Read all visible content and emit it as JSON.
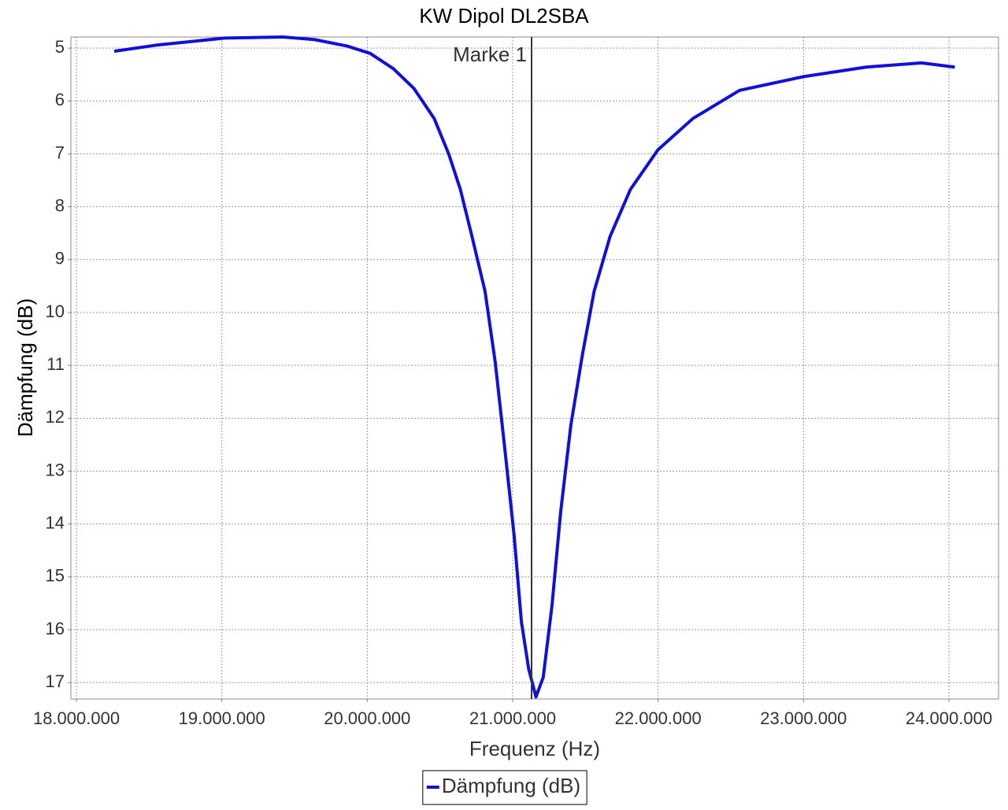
{
  "chart_data": {
    "type": "line",
    "title": "KW Dipol DL2SBA",
    "xlabel": "Frequenz (Hz)",
    "ylabel": "Dämpfung (dB)",
    "x": [
      18260000,
      18560000,
      19020000,
      19420000,
      19640000,
      19860000,
      20020000,
      20180000,
      20320000,
      20460000,
      20560000,
      20640000,
      20720000,
      20810000,
      20880000,
      20940000,
      21010000,
      21060000,
      21110000,
      21160000,
      21210000,
      21270000,
      21330000,
      21400000,
      21480000,
      21560000,
      21670000,
      21810000,
      22000000,
      22240000,
      22560000,
      23000000,
      23430000,
      23810000,
      24040000
    ],
    "series": [
      {
        "name": "Dämpfung (dB)",
        "color": "#1010d8",
        "values": [
          5.06,
          4.94,
          4.81,
          4.79,
          4.84,
          4.96,
          5.1,
          5.39,
          5.76,
          6.33,
          7.0,
          7.67,
          8.56,
          9.6,
          10.94,
          12.43,
          14.22,
          15.85,
          16.74,
          17.27,
          16.9,
          15.55,
          13.77,
          12.13,
          10.79,
          9.6,
          8.56,
          7.67,
          6.92,
          6.33,
          5.8,
          5.54,
          5.36,
          5.28,
          5.36
        ]
      }
    ],
    "xlim": [
      17962000,
      24341000
    ],
    "xticks": [
      {
        "value": 18000000,
        "label": "18.000.000"
      },
      {
        "value": 19000000,
        "label": "19.000.000"
      },
      {
        "value": 20000000,
        "label": "20.000.000"
      },
      {
        "value": 21000000,
        "label": "21.000.000"
      },
      {
        "value": 22000000,
        "label": "22.000.000"
      },
      {
        "value": 23000000,
        "label": "23.000.000"
      },
      {
        "value": 24000000,
        "label": "24.000.000"
      }
    ],
    "ylim": [
      4.79,
      17.31
    ],
    "y_inverted": true,
    "yticks": [
      5,
      6,
      7,
      8,
      9,
      10,
      11,
      12,
      13,
      14,
      15,
      16,
      17
    ],
    "grid": true,
    "marker": {
      "value": 21130000,
      "label": "Marke 1",
      "color": "#333333"
    },
    "legend": "bottom"
  }
}
